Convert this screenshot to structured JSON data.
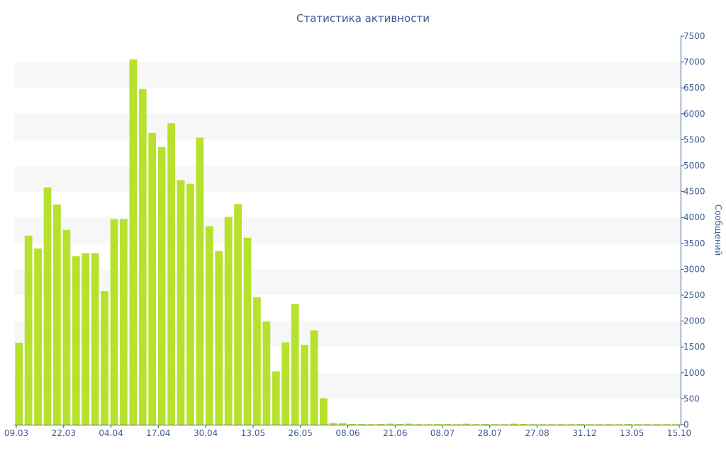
{
  "colors": {
    "bar": "#b6e12c",
    "text": "#3e5a92",
    "band": "#f7f7f7",
    "axis": "#3e5a92"
  },
  "chart_data": {
    "type": "bar",
    "title": "Статистика активности",
    "ylabel": "Сообщений",
    "xlabel": "",
    "ylim": [
      0,
      7500
    ],
    "y_ticks": [
      0,
      500,
      1000,
      1500,
      2000,
      2500,
      3000,
      3500,
      4000,
      4500,
      5000,
      5500,
      6000,
      6500,
      7000,
      7500
    ],
    "y_axis_position": "right",
    "grid": "alternating horizontal bands",
    "x_tick_labels": [
      "09.03",
      "22.03",
      "04.04",
      "17.04",
      "30.04",
      "13.05",
      "26.05",
      "08.06",
      "21.06",
      "08.07",
      "28.07",
      "27.08",
      "31.12",
      "13.05",
      "15.10"
    ],
    "values": [
      1580,
      3650,
      3400,
      4580,
      4250,
      3760,
      3250,
      3310,
      3310,
      2580,
      3970,
      3970,
      7050,
      6480,
      5630,
      5360,
      5820,
      4720,
      4650,
      5540,
      3830,
      3350,
      4010,
      4260,
      3610,
      2460,
      1990,
      1030,
      1590,
      2330,
      1540,
      1820,
      510,
      30,
      30,
      15,
      15,
      10,
      15,
      20,
      15,
      20,
      10,
      10,
      15,
      15,
      10,
      20,
      10,
      15,
      10,
      10,
      20,
      15,
      10,
      10,
      10,
      10,
      10,
      15,
      10,
      10,
      10,
      10,
      15,
      10,
      10,
      10,
      10,
      10
    ]
  }
}
